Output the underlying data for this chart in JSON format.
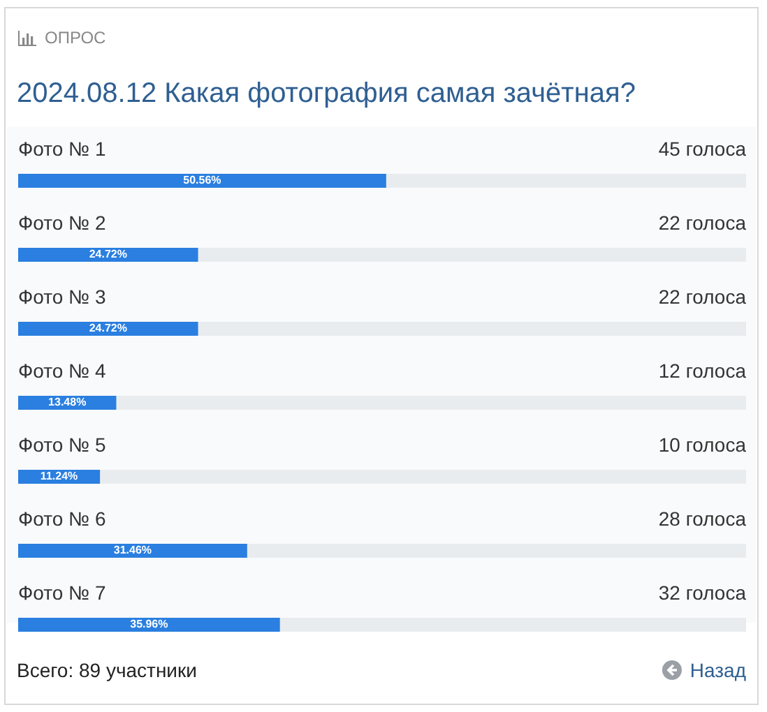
{
  "chart_data": {
    "type": "bar",
    "orientation": "horizontal",
    "title": "2024.08.12 Какая фотография самая зачётная?",
    "categories": [
      "Фото № 1",
      "Фото № 2",
      "Фото № 3",
      "Фото № 4",
      "Фото № 5",
      "Фото № 6",
      "Фото № 7"
    ],
    "values": [
      50.56,
      24.72,
      24.72,
      13.48,
      11.24,
      31.46,
      35.96
    ],
    "value_labels": [
      "50.56%",
      "24.72%",
      "24.72%",
      "13.48%",
      "11.24%",
      "31.46%",
      "35.96%"
    ],
    "color": "#2a7fe0",
    "xlim": [
      0,
      100
    ],
    "annotations": [
      "ОПРОС",
      "45 голоса",
      "22 голоса",
      "22 голоса",
      "12 голоса",
      "10 голоса",
      "28 голоса",
      "32 голоса",
      "Всего: 89 участники",
      "Назад"
    ]
  }
}
